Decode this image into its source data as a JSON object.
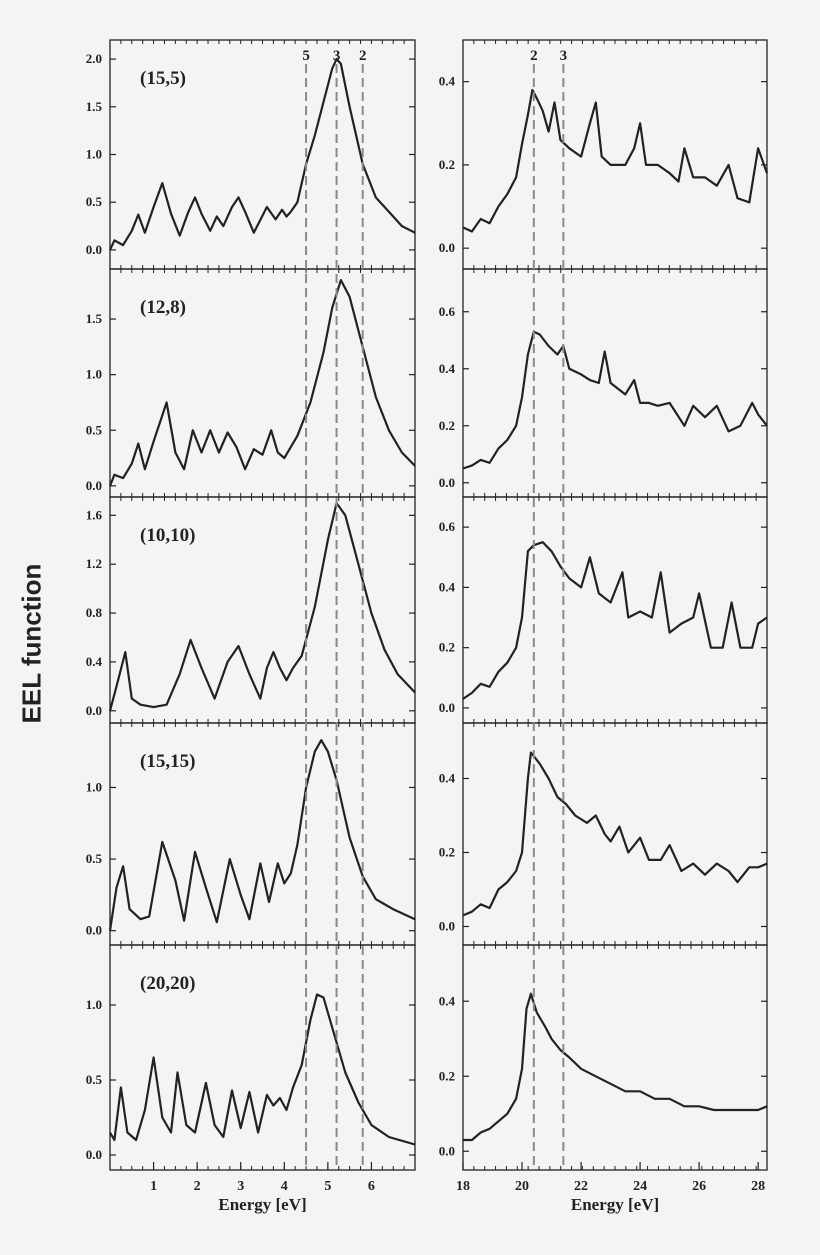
{
  "ylabel": "EEL function",
  "xlabel_left": "Energy [eV]",
  "xlabel_right": "Energy [eV]",
  "colors": {
    "curve": "#222222",
    "dashed": "#8a8a8a",
    "axis": "#222222",
    "background": "#f4f4f4"
  },
  "chart_data": [
    {
      "type": "line",
      "title": "(15,5)",
      "xlim": [
        0,
        7
      ],
      "ylim": [
        -0.2,
        2.2
      ],
      "y_ticks": [
        "0.0",
        "0.5",
        "1.0",
        "1.5",
        "2.0"
      ],
      "x_ticks": [],
      "markers": [
        {
          "x": 4.5,
          "label": "5"
        },
        {
          "x": 5.2,
          "label": "3"
        },
        {
          "x": 5.8,
          "label": "2"
        }
      ],
      "x": [
        0.0,
        0.1,
        0.3,
        0.5,
        0.65,
        0.8,
        1.0,
        1.2,
        1.4,
        1.6,
        1.8,
        1.95,
        2.1,
        2.3,
        2.45,
        2.6,
        2.8,
        2.95,
        3.1,
        3.3,
        3.6,
        3.8,
        3.95,
        4.05,
        4.15,
        4.3,
        4.5,
        4.7,
        4.9,
        5.1,
        5.2,
        5.3,
        5.5,
        5.8,
        6.1,
        6.4,
        6.7,
        7.0
      ],
      "y": [
        0.0,
        0.1,
        0.05,
        0.2,
        0.37,
        0.18,
        0.45,
        0.7,
        0.38,
        0.15,
        0.4,
        0.55,
        0.38,
        0.2,
        0.35,
        0.25,
        0.45,
        0.55,
        0.4,
        0.18,
        0.45,
        0.32,
        0.42,
        0.35,
        0.4,
        0.5,
        0.9,
        1.2,
        1.55,
        1.9,
        2.0,
        1.95,
        1.5,
        0.9,
        0.55,
        0.4,
        0.25,
        0.18
      ]
    },
    {
      "type": "line",
      "title": "",
      "xlim": [
        18,
        28.3
      ],
      "ylim": [
        -0.05,
        0.5
      ],
      "y_ticks": [
        "0.0",
        "0.2",
        "0.4"
      ],
      "x_ticks": [],
      "markers": [
        {
          "x": 20.4,
          "label": "2"
        },
        {
          "x": 21.4,
          "label": "3"
        }
      ],
      "x": [
        18.0,
        18.3,
        18.6,
        18.9,
        19.2,
        19.5,
        19.8,
        20.0,
        20.2,
        20.35,
        20.5,
        20.7,
        20.9,
        21.1,
        21.3,
        21.6,
        22.0,
        22.3,
        22.5,
        22.7,
        23.0,
        23.5,
        23.8,
        24.0,
        24.2,
        24.6,
        25.0,
        25.3,
        25.5,
        25.8,
        26.2,
        26.6,
        27.0,
        27.3,
        27.7,
        28.0,
        28.3
      ],
      "y": [
        0.05,
        0.04,
        0.07,
        0.06,
        0.1,
        0.13,
        0.17,
        0.25,
        0.32,
        0.38,
        0.36,
        0.33,
        0.28,
        0.35,
        0.26,
        0.24,
        0.22,
        0.3,
        0.35,
        0.22,
        0.2,
        0.2,
        0.24,
        0.3,
        0.2,
        0.2,
        0.18,
        0.16,
        0.24,
        0.17,
        0.17,
        0.15,
        0.2,
        0.12,
        0.11,
        0.24,
        0.18
      ]
    },
    {
      "type": "line",
      "title": "(12,8)",
      "xlim": [
        0,
        7
      ],
      "ylim": [
        -0.1,
        1.95
      ],
      "y_ticks": [
        "0.0",
        "0.5",
        "1.0",
        "1.5"
      ],
      "x_ticks": [],
      "markers": [],
      "x": [
        0.0,
        0.1,
        0.3,
        0.5,
        0.65,
        0.8,
        1.0,
        1.3,
        1.5,
        1.7,
        1.9,
        2.1,
        2.3,
        2.5,
        2.7,
        2.9,
        3.1,
        3.3,
        3.5,
        3.7,
        3.85,
        4.0,
        4.3,
        4.6,
        4.9,
        5.1,
        5.3,
        5.5,
        5.8,
        6.1,
        6.4,
        6.7,
        7.0
      ],
      "y": [
        0.0,
        0.1,
        0.07,
        0.2,
        0.38,
        0.15,
        0.4,
        0.75,
        0.3,
        0.15,
        0.5,
        0.3,
        0.5,
        0.3,
        0.48,
        0.35,
        0.15,
        0.33,
        0.28,
        0.5,
        0.3,
        0.25,
        0.45,
        0.75,
        1.2,
        1.6,
        1.85,
        1.7,
        1.25,
        0.8,
        0.5,
        0.3,
        0.18
      ]
    },
    {
      "type": "line",
      "title": "",
      "xlim": [
        18,
        28.3
      ],
      "ylim": [
        -0.05,
        0.75
      ],
      "y_ticks": [
        "0.0",
        "0.2",
        "0.4",
        "0.6"
      ],
      "x_ticks": [],
      "markers": [],
      "x": [
        18.0,
        18.3,
        18.6,
        18.9,
        19.2,
        19.5,
        19.8,
        20.0,
        20.2,
        20.4,
        20.6,
        20.9,
        21.2,
        21.4,
        21.6,
        22.0,
        22.3,
        22.6,
        22.8,
        23.0,
        23.5,
        23.8,
        24.0,
        24.3,
        24.6,
        25.0,
        25.5,
        25.8,
        26.2,
        26.6,
        27.0,
        27.4,
        27.8,
        28.0,
        28.3
      ],
      "y": [
        0.05,
        0.06,
        0.08,
        0.07,
        0.12,
        0.15,
        0.2,
        0.3,
        0.45,
        0.53,
        0.52,
        0.48,
        0.45,
        0.48,
        0.4,
        0.38,
        0.36,
        0.35,
        0.46,
        0.35,
        0.31,
        0.36,
        0.28,
        0.28,
        0.27,
        0.28,
        0.2,
        0.27,
        0.23,
        0.27,
        0.18,
        0.2,
        0.28,
        0.24,
        0.2
      ]
    },
    {
      "type": "line",
      "title": "(10,10)",
      "xlim": [
        0,
        7
      ],
      "ylim": [
        -0.1,
        1.75
      ],
      "y_ticks": [
        "0.0",
        "0.4",
        "0.8",
        "1.2",
        "1.6"
      ],
      "x_ticks": [],
      "markers": [],
      "x": [
        0.0,
        0.15,
        0.35,
        0.5,
        0.7,
        1.0,
        1.3,
        1.6,
        1.85,
        2.1,
        2.4,
        2.7,
        2.95,
        3.2,
        3.45,
        3.6,
        3.75,
        3.9,
        4.05,
        4.2,
        4.4,
        4.7,
        5.0,
        5.2,
        5.4,
        5.7,
        6.0,
        6.3,
        6.6,
        7.0
      ],
      "y": [
        0.0,
        0.2,
        0.48,
        0.1,
        0.05,
        0.03,
        0.05,
        0.3,
        0.58,
        0.35,
        0.1,
        0.4,
        0.53,
        0.3,
        0.1,
        0.35,
        0.48,
        0.35,
        0.25,
        0.35,
        0.45,
        0.85,
        1.4,
        1.7,
        1.6,
        1.2,
        0.8,
        0.5,
        0.3,
        0.15
      ]
    },
    {
      "type": "line",
      "title": "",
      "xlim": [
        18,
        28.3
      ],
      "ylim": [
        -0.05,
        0.7
      ],
      "y_ticks": [
        "0.0",
        "0.2",
        "0.4",
        "0.6"
      ],
      "x_ticks": [],
      "markers": [],
      "x": [
        18.0,
        18.3,
        18.6,
        18.9,
        19.2,
        19.5,
        19.8,
        20.0,
        20.2,
        20.4,
        20.7,
        21.0,
        21.3,
        21.6,
        22.0,
        22.3,
        22.6,
        23.0,
        23.4,
        23.6,
        24.0,
        24.4,
        24.7,
        25.0,
        25.4,
        25.8,
        26.0,
        26.4,
        26.8,
        27.1,
        27.4,
        27.8,
        28.0,
        28.3
      ],
      "y": [
        0.03,
        0.05,
        0.08,
        0.07,
        0.12,
        0.15,
        0.2,
        0.3,
        0.52,
        0.54,
        0.55,
        0.52,
        0.47,
        0.43,
        0.4,
        0.5,
        0.38,
        0.35,
        0.45,
        0.3,
        0.32,
        0.3,
        0.45,
        0.25,
        0.28,
        0.3,
        0.38,
        0.2,
        0.2,
        0.35,
        0.2,
        0.2,
        0.28,
        0.3
      ]
    },
    {
      "type": "line",
      "title": "(15,15)",
      "xlim": [
        0,
        7
      ],
      "ylim": [
        -0.1,
        1.45
      ],
      "y_ticks": [
        "0.0",
        "0.5",
        "1.0"
      ],
      "x_ticks": [],
      "markers": [],
      "x": [
        0.0,
        0.15,
        0.3,
        0.45,
        0.7,
        0.9,
        1.2,
        1.5,
        1.7,
        1.95,
        2.2,
        2.45,
        2.75,
        3.0,
        3.2,
        3.45,
        3.65,
        3.85,
        4.0,
        4.15,
        4.3,
        4.5,
        4.7,
        4.85,
        5.0,
        5.2,
        5.5,
        5.8,
        6.1,
        6.5,
        7.0
      ],
      "y": [
        0.0,
        0.3,
        0.45,
        0.15,
        0.08,
        0.1,
        0.62,
        0.35,
        0.07,
        0.55,
        0.3,
        0.06,
        0.5,
        0.25,
        0.08,
        0.47,
        0.2,
        0.47,
        0.33,
        0.4,
        0.6,
        1.0,
        1.25,
        1.33,
        1.25,
        1.05,
        0.65,
        0.38,
        0.22,
        0.15,
        0.08
      ]
    },
    {
      "type": "line",
      "title": "",
      "xlim": [
        18,
        28.3
      ],
      "ylim": [
        -0.05,
        0.55
      ],
      "y_ticks": [
        "0.0",
        "0.2",
        "0.4"
      ],
      "x_ticks": [],
      "markers": [],
      "x": [
        18.0,
        18.3,
        18.6,
        18.9,
        19.2,
        19.5,
        19.8,
        20.0,
        20.2,
        20.3,
        20.6,
        20.9,
        21.2,
        21.5,
        21.8,
        22.2,
        22.5,
        22.8,
        23.0,
        23.3,
        23.6,
        24.0,
        24.3,
        24.7,
        25.0,
        25.4,
        25.8,
        26.2,
        26.6,
        27.0,
        27.3,
        27.7,
        28.0,
        28.3
      ],
      "y": [
        0.03,
        0.04,
        0.06,
        0.05,
        0.1,
        0.12,
        0.15,
        0.2,
        0.4,
        0.47,
        0.44,
        0.4,
        0.35,
        0.33,
        0.3,
        0.28,
        0.3,
        0.25,
        0.23,
        0.27,
        0.2,
        0.24,
        0.18,
        0.18,
        0.22,
        0.15,
        0.17,
        0.14,
        0.17,
        0.15,
        0.12,
        0.16,
        0.16,
        0.17
      ]
    },
    {
      "type": "line",
      "title": "(20,20)",
      "xlim": [
        0,
        7
      ],
      "ylim": [
        -0.1,
        1.4
      ],
      "y_ticks": [
        "0.0",
        "0.5",
        "1.0"
      ],
      "x_ticks": [
        "1",
        "2",
        "3",
        "4",
        "5",
        "6"
      ],
      "markers": [],
      "x": [
        0.0,
        0.1,
        0.25,
        0.4,
        0.6,
        0.8,
        1.0,
        1.2,
        1.4,
        1.55,
        1.75,
        1.95,
        2.2,
        2.4,
        2.6,
        2.8,
        3.0,
        3.2,
        3.4,
        3.6,
        3.75,
        3.9,
        4.05,
        4.2,
        4.4,
        4.6,
        4.75,
        4.9,
        5.1,
        5.4,
        5.7,
        6.0,
        6.4,
        7.0
      ],
      "y": [
        0.15,
        0.1,
        0.45,
        0.15,
        0.1,
        0.3,
        0.65,
        0.25,
        0.15,
        0.55,
        0.2,
        0.15,
        0.48,
        0.2,
        0.12,
        0.43,
        0.18,
        0.42,
        0.15,
        0.4,
        0.33,
        0.38,
        0.3,
        0.45,
        0.6,
        0.9,
        1.07,
        1.05,
        0.85,
        0.55,
        0.35,
        0.2,
        0.12,
        0.07
      ]
    },
    {
      "type": "line",
      "title": "",
      "xlim": [
        18,
        28.3
      ],
      "ylim": [
        -0.05,
        0.55
      ],
      "y_ticks": [
        "0.0",
        "0.2",
        "0.4"
      ],
      "x_ticks": [
        "18",
        "20",
        "22",
        "24",
        "26",
        "28"
      ],
      "markers": [],
      "x": [
        18.0,
        18.3,
        18.6,
        18.9,
        19.2,
        19.5,
        19.8,
        20.0,
        20.15,
        20.3,
        20.5,
        20.8,
        21.0,
        21.3,
        21.6,
        22.0,
        22.5,
        23.0,
        23.5,
        24.0,
        24.5,
        25.0,
        25.5,
        26.0,
        26.5,
        27.0,
        27.5,
        28.0,
        28.3
      ],
      "y": [
        0.03,
        0.03,
        0.05,
        0.06,
        0.08,
        0.1,
        0.14,
        0.22,
        0.38,
        0.42,
        0.37,
        0.33,
        0.3,
        0.27,
        0.25,
        0.22,
        0.2,
        0.18,
        0.16,
        0.16,
        0.14,
        0.14,
        0.12,
        0.12,
        0.11,
        0.11,
        0.11,
        0.11,
        0.12
      ]
    }
  ]
}
